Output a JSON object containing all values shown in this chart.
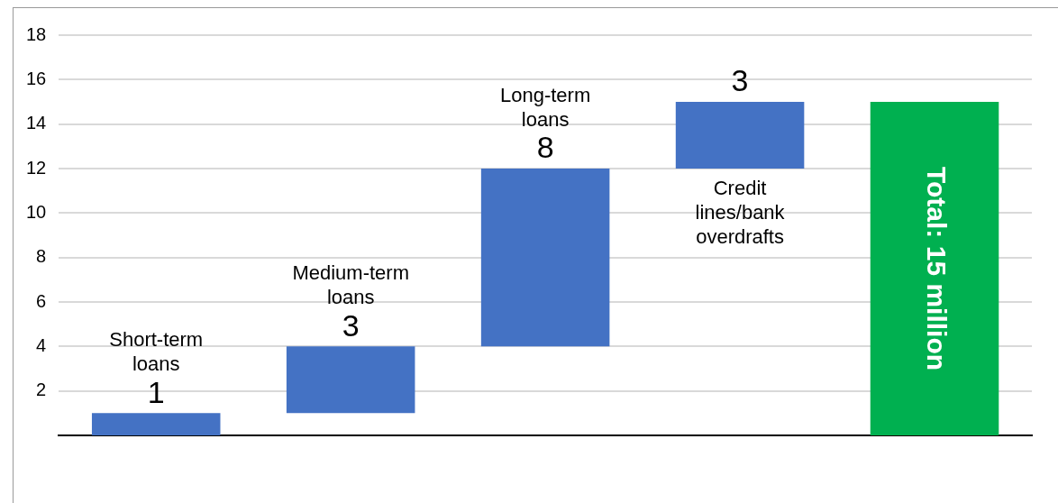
{
  "chart_data": {
    "type": "bar",
    "categories": [
      "Short-term loans",
      "Medium-term loans",
      "Long-term loans",
      "Credit lines/bank overdrafts",
      null
    ],
    "values": [
      1,
      3,
      8,
      3,
      15
    ],
    "base": [
      0,
      1,
      4,
      12,
      0
    ],
    "colors": [
      "#4472c4",
      "#4472c4",
      "#4472c4",
      "#4472c4",
      "#00b050"
    ],
    "value_labels": [
      "1",
      "3",
      "8",
      "3",
      "Total: 15 million"
    ],
    "ylim": [
      0,
      18
    ],
    "yticks": [
      2,
      4,
      6,
      8,
      10,
      12,
      14,
      16,
      18
    ],
    "grid": "y",
    "legend": false,
    "tick_labels": "y"
  }
}
